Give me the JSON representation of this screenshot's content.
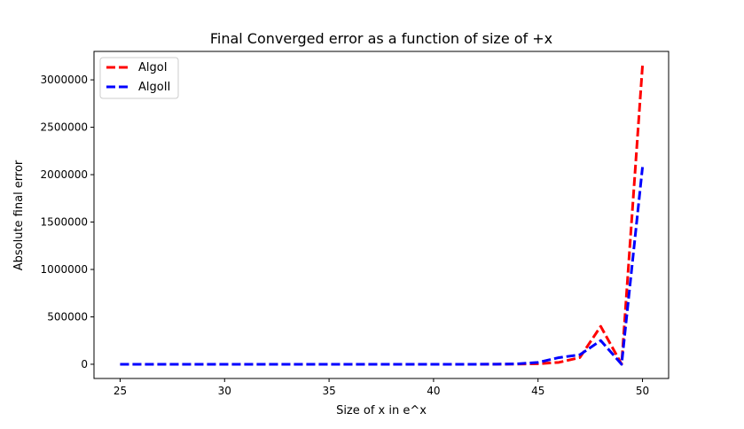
{
  "chart_data": {
    "type": "line",
    "title": "Final Converged error as a function of size of +x",
    "xlabel": "Size of x in e^x",
    "ylabel": "Absolute final error",
    "xlim": [
      23.75,
      51.25
    ],
    "ylim": [
      -150000,
      3300000
    ],
    "xticks": [
      25,
      30,
      35,
      40,
      45,
      50
    ],
    "yticks": [
      0,
      500000,
      1000000,
      1500000,
      2000000,
      2500000,
      3000000
    ],
    "x": [
      25,
      26,
      27,
      28,
      29,
      30,
      31,
      32,
      33,
      34,
      35,
      36,
      37,
      38,
      39,
      40,
      41,
      42,
      43,
      44,
      45,
      46,
      47,
      48,
      49,
      50
    ],
    "series": [
      {
        "name": "AlgoI",
        "color": "#ff0000",
        "line_style": "dashed",
        "values": [
          0,
          0,
          0,
          0,
          0,
          0,
          0,
          0,
          0,
          0,
          0,
          0,
          0,
          0,
          0,
          0,
          0,
          0,
          500,
          2000,
          5000,
          20000,
          70000,
          400000,
          0,
          3150000
        ]
      },
      {
        "name": "AlgoII",
        "color": "#0000ff",
        "line_style": "dashed",
        "values": [
          0,
          0,
          0,
          0,
          0,
          0,
          0,
          0,
          0,
          0,
          0,
          0,
          0,
          0,
          0,
          0,
          0,
          0,
          1000,
          4000,
          20000,
          70000,
          100000,
          250000,
          0,
          2080000
        ]
      }
    ],
    "legend_position": "top-left",
    "grid": false
  }
}
